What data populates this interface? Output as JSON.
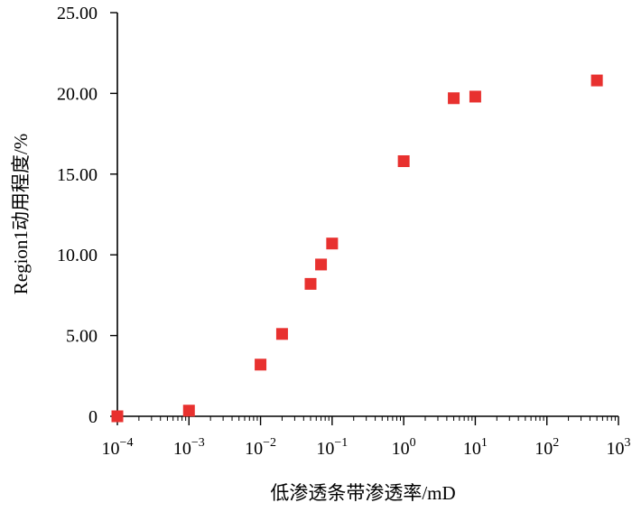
{
  "chart_data": {
    "type": "scatter",
    "title": "",
    "xlabel": "低渗透条带渗透率/mD",
    "ylabel": "Region1动用程度/%",
    "x_scale": "log",
    "xlim": [
      0.0001,
      1000
    ],
    "ylim": [
      0,
      25
    ],
    "grid": false,
    "x_ticks": [
      {
        "base": "10",
        "exp": "−4"
      },
      {
        "base": "10",
        "exp": "−3"
      },
      {
        "base": "10",
        "exp": "−2"
      },
      {
        "base": "10",
        "exp": "−1"
      },
      {
        "base": "10",
        "exp": "0"
      },
      {
        "base": "10",
        "exp": "1"
      },
      {
        "base": "10",
        "exp": "2"
      },
      {
        "base": "10",
        "exp": "3"
      }
    ],
    "y_ticks": [
      "0",
      "5.00",
      "10.00",
      "15.00",
      "20.00",
      "25.00"
    ],
    "series": [
      {
        "marker": "square",
        "color": "#e8312f",
        "points": [
          {
            "x": 0.0001,
            "y": 0.0
          },
          {
            "x": 0.001,
            "y": 0.35
          },
          {
            "x": 0.01,
            "y": 3.2
          },
          {
            "x": 0.02,
            "y": 5.1
          },
          {
            "x": 0.05,
            "y": 8.2
          },
          {
            "x": 0.07,
            "y": 9.4
          },
          {
            "x": 0.1,
            "y": 10.7
          },
          {
            "x": 1,
            "y": 15.8
          },
          {
            "x": 5,
            "y": 19.7
          },
          {
            "x": 10,
            "y": 19.8
          },
          {
            "x": 500,
            "y": 20.8
          }
        ]
      }
    ]
  }
}
